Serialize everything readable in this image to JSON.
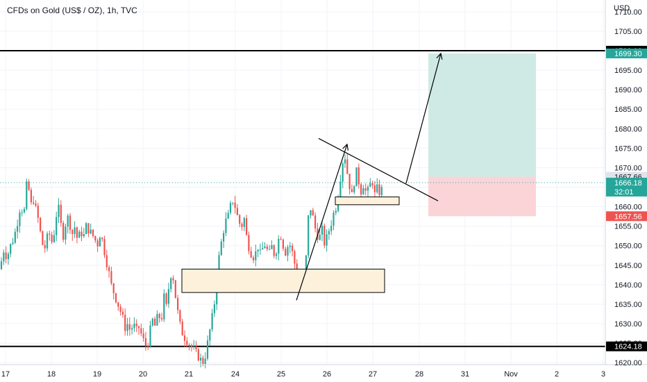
{
  "chart_title": "CFDs on Gold (US$ / OZ), 1h, TVC",
  "currency_label": "USD",
  "colors": {
    "up": "#26a69a",
    "down": "#ef5350",
    "profit_zone": "#cfeae5",
    "loss_zone": "#fbd4d8",
    "box_fill": "#fdf1dc",
    "grid": "#f0f3fa"
  },
  "chart_data": {
    "type": "candlestick",
    "title": "CFDs on Gold (US$ / OZ), 1h, TVC",
    "ylabel": "USD",
    "ylim": [
      1619.5,
      1713
    ],
    "y_ticks": [
      1620,
      1625,
      1630,
      1635,
      1640,
      1645,
      1650,
      1655,
      1660,
      1665,
      1670,
      1675,
      1680,
      1685,
      1690,
      1695,
      1700,
      1705,
      1710
    ],
    "x_tick_labels": [
      "17",
      "18",
      "19",
      "20",
      "21",
      "24",
      "25",
      "26",
      "27",
      "28",
      "31",
      "Nov",
      "2",
      "3"
    ],
    "price_tags": [
      {
        "id": "resistance",
        "value": "1700.00",
        "price": 1700.0,
        "bg": "#000000"
      },
      {
        "id": "target",
        "value": "1699.30",
        "price": 1699.3,
        "bg": "#26a69a"
      },
      {
        "id": "entry",
        "value": "1667.66",
        "price": 1667.66,
        "bg": "#e0e3eb"
      },
      {
        "id": "last",
        "value": "1666.18",
        "price": 1666.18,
        "bg": "#26a69a"
      },
      {
        "id": "countdown",
        "value": "32:01",
        "price": 1664.5,
        "bg": "#26a69a"
      },
      {
        "id": "stop",
        "value": "1657.56",
        "price": 1657.56,
        "bg": "#ef5350"
      },
      {
        "id": "support",
        "value": "1624.18",
        "price": 1624.18,
        "bg": "#000000"
      }
    ],
    "horizontal_lines": [
      {
        "name": "resistance-line",
        "price": 1700.0
      },
      {
        "name": "support-line",
        "price": 1624.18
      }
    ],
    "last_price": 1666.18,
    "close_path": [
      [
        0,
        1644
      ],
      [
        5,
        1649
      ],
      [
        10,
        1647
      ],
      [
        15,
        1650
      ],
      [
        20,
        1652
      ],
      [
        25,
        1656
      ],
      [
        30,
        1661
      ],
      [
        34,
        1657
      ],
      [
        38,
        1665
      ],
      [
        40,
        1667
      ],
      [
        44,
        1660
      ],
      [
        48,
        1662
      ],
      [
        52,
        1659
      ],
      [
        56,
        1656
      ],
      [
        60,
        1651
      ],
      [
        64,
        1649
      ],
      [
        68,
        1652
      ],
      [
        72,
        1653
      ],
      [
        76,
        1650
      ],
      [
        80,
        1657
      ],
      [
        84,
        1660
      ],
      [
        88,
        1655
      ],
      [
        92,
        1652
      ],
      [
        96,
        1658
      ],
      [
        100,
        1656
      ],
      [
        104,
        1653
      ],
      [
        108,
        1655
      ],
      [
        112,
        1651
      ],
      [
        116,
        1654
      ],
      [
        120,
        1652
      ],
      [
        124,
        1655
      ],
      [
        128,
        1654
      ],
      [
        132,
        1653
      ],
      [
        136,
        1652
      ],
      [
        140,
        1650
      ],
      [
        144,
        1653
      ],
      [
        148,
        1651
      ],
      [
        152,
        1647
      ],
      [
        156,
        1644
      ],
      [
        160,
        1640
      ],
      [
        164,
        1638
      ],
      [
        168,
        1636
      ],
      [
        172,
        1634
      ],
      [
        176,
        1632
      ],
      [
        180,
        1629
      ],
      [
        184,
        1630
      ],
      [
        188,
        1628
      ],
      [
        192,
        1630
      ],
      [
        196,
        1628
      ],
      [
        200,
        1629
      ],
      [
        204,
        1627
      ],
      [
        208,
        1625
      ],
      [
        212,
        1624
      ],
      [
        216,
        1628
      ],
      [
        220,
        1631
      ],
      [
        224,
        1629
      ],
      [
        228,
        1633
      ],
      [
        232,
        1630
      ],
      [
        236,
        1637
      ],
      [
        240,
        1634
      ],
      [
        244,
        1641
      ],
      [
        248,
        1644
      ],
      [
        252,
        1638
      ],
      [
        256,
        1633
      ],
      [
        260,
        1629
      ],
      [
        264,
        1627
      ],
      [
        268,
        1626
      ],
      [
        272,
        1625
      ],
      [
        276,
        1624
      ],
      [
        280,
        1623
      ],
      [
        284,
        1622
      ],
      [
        288,
        1621
      ],
      [
        292,
        1620
      ],
      [
        296,
        1622
      ],
      [
        300,
        1626
      ],
      [
        304,
        1630
      ],
      [
        308,
        1634
      ],
      [
        312,
        1640
      ],
      [
        316,
        1648
      ],
      [
        320,
        1652
      ],
      [
        324,
        1656
      ],
      [
        328,
        1657
      ],
      [
        332,
        1660
      ],
      [
        336,
        1662
      ],
      [
        340,
        1659
      ],
      [
        344,
        1656
      ],
      [
        348,
        1655
      ],
      [
        352,
        1657
      ],
      [
        356,
        1651
      ],
      [
        360,
        1649
      ],
      [
        364,
        1647
      ],
      [
        368,
        1648
      ],
      [
        372,
        1650
      ],
      [
        376,
        1647
      ],
      [
        380,
        1651
      ],
      [
        384,
        1649
      ],
      [
        388,
        1648
      ],
      [
        392,
        1650
      ],
      [
        396,
        1647
      ],
      [
        400,
        1651
      ],
      [
        404,
        1653
      ],
      [
        408,
        1650
      ],
      [
        412,
        1648
      ],
      [
        416,
        1651
      ],
      [
        420,
        1649
      ],
      [
        424,
        1646
      ],
      [
        428,
        1641
      ],
      [
        432,
        1638
      ],
      [
        436,
        1640
      ],
      [
        440,
        1644
      ],
      [
        444,
        1657
      ],
      [
        448,
        1660
      ],
      [
        452,
        1656
      ],
      [
        456,
        1653
      ],
      [
        460,
        1652
      ],
      [
        464,
        1654
      ],
      [
        468,
        1650
      ],
      [
        472,
        1653
      ],
      [
        476,
        1655
      ],
      [
        480,
        1658
      ],
      [
        484,
        1660
      ],
      [
        488,
        1664
      ],
      [
        492,
        1670
      ],
      [
        496,
        1674
      ],
      [
        500,
        1669
      ],
      [
        504,
        1665
      ],
      [
        508,
        1662
      ],
      [
        512,
        1670
      ],
      [
        516,
        1667
      ],
      [
        520,
        1664
      ],
      [
        524,
        1666
      ],
      [
        528,
        1663
      ],
      [
        532,
        1665
      ],
      [
        536,
        1667
      ],
      [
        540,
        1663
      ],
      [
        544,
        1665
      ],
      [
        548,
        1663
      ],
      [
        552,
        1666
      ]
    ],
    "annotations": {
      "rectangles": [
        {
          "name": "demand-zone-box",
          "x1": 262,
          "x2": 554,
          "p1": 1644,
          "p2": 1638
        },
        {
          "name": "consolidation-box",
          "x1": 483,
          "x2": 575,
          "p1": 1662.5,
          "p2": 1660.5
        }
      ],
      "trendlines": [
        {
          "name": "descending-trendline",
          "x1": 459,
          "p1": 1677.5,
          "x2": 631,
          "p2": 1661.5
        },
        {
          "name": "impulse-arrow",
          "x1": 427,
          "p1": 1636,
          "x2": 500,
          "p2": 1676,
          "arrow": true
        },
        {
          "name": "projection-arrow",
          "x1": 585,
          "p1": 1666,
          "x2": 635,
          "p2": 1699.3,
          "arrow": true
        }
      ],
      "position": {
        "x1": 617,
        "x2": 772,
        "target": 1699.3,
        "entry": 1667.66,
        "stop": 1657.56
      }
    }
  }
}
